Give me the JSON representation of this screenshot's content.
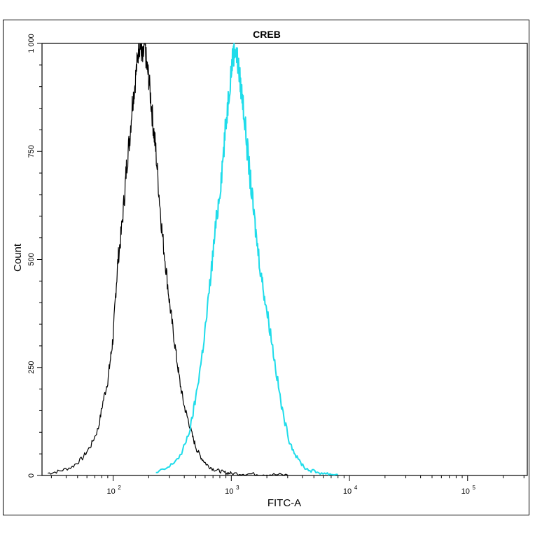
{
  "chart_data": {
    "type": "line",
    "title": "CREB",
    "xlabel": "FITC-A",
    "ylabel": "Count",
    "x_scale": "log",
    "xlim": [
      25,
      320000
    ],
    "ylim": [
      0,
      1000
    ],
    "x_ticks": [
      {
        "value": 100,
        "base": "10",
        "exp": "2"
      },
      {
        "value": 1000,
        "base": "10",
        "exp": "3"
      },
      {
        "value": 10000,
        "base": "10",
        "exp": "4"
      },
      {
        "value": 100000,
        "base": "10",
        "exp": "5"
      }
    ],
    "y_ticks": [
      {
        "value": 0,
        "label": "0"
      },
      {
        "value": 250,
        "label": "250"
      },
      {
        "value": 500,
        "label": "500"
      },
      {
        "value": 750,
        "label": "750"
      },
      {
        "value": 1000,
        "label": "1 000"
      }
    ],
    "grid": false,
    "legend": "none",
    "series": [
      {
        "color": "#000000",
        "x": [
          28,
          35,
          45,
          55,
          65,
          75,
          82,
          90,
          95,
          100,
          105,
          110,
          117,
          125,
          130,
          138,
          145,
          152,
          160,
          166,
          172,
          178,
          185,
          192,
          200,
          210,
          220,
          230,
          245,
          260,
          280,
          300,
          320,
          345,
          370,
          400,
          430,
          470,
          510,
          560,
          620,
          700,
          800,
          900,
          1000,
          1300,
          1700,
          2200,
          3000
        ],
        "values": [
          5,
          10,
          20,
          40,
          70,
          110,
          170,
          220,
          270,
          320,
          420,
          500,
          560,
          650,
          720,
          780,
          860,
          900,
          960,
          1000,
          990,
          960,
          1000,
          950,
          920,
          860,
          800,
          750,
          650,
          560,
          480,
          400,
          340,
          270,
          210,
          160,
          130,
          90,
          60,
          40,
          25,
          15,
          10,
          6,
          5,
          4,
          3,
          2,
          1
        ]
      },
      {
        "color": "#1fdcea",
        "x": [
          230,
          300,
          380,
          450,
          500,
          560,
          620,
          680,
          740,
          800,
          860,
          920,
          980,
          1030,
          1080,
          1130,
          1190,
          1260,
          1340,
          1430,
          1530,
          1650,
          1800,
          1950,
          2150,
          2400,
          2700,
          3100,
          3600,
          4300,
          5200,
          6500,
          8000
        ],
        "values": [
          5,
          20,
          50,
          110,
          180,
          270,
          370,
          480,
          580,
          660,
          750,
          840,
          920,
          970,
          990,
          960,
          910,
          860,
          780,
          700,
          620,
          540,
          460,
          400,
          330,
          240,
          150,
          80,
          40,
          15,
          8,
          4,
          2
        ]
      }
    ]
  }
}
